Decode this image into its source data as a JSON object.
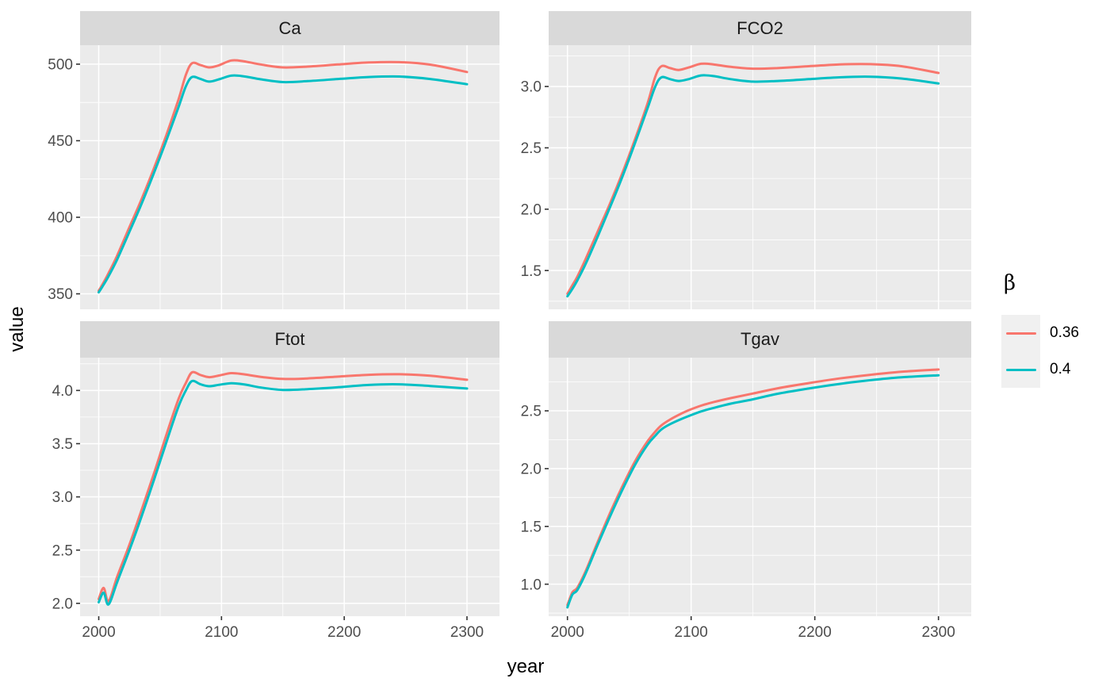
{
  "figure": {
    "x_axis_title": "year",
    "y_axis_title": "value"
  },
  "legend": {
    "title": "β",
    "entries": [
      {
        "label": "0.36",
        "color": "#F8766D"
      },
      {
        "label": "0.4",
        "color": "#00BFC4"
      }
    ]
  },
  "style": {
    "panel_bg": "#EBEBEB",
    "strip_bg": "#D9D9D9",
    "grid_color": "#FFFFFF",
    "tick_mark_color": "#333333",
    "axis_text_color": "#4D4D4D",
    "strip_text_color": "#1A1A1A",
    "series_colors": {
      "0.36": "#F8766D",
      "0.4": "#00BFC4"
    }
  },
  "chart_data": {
    "type": "line",
    "title": "",
    "xlabel": "year",
    "ylabel": "value",
    "legend_title": "β",
    "legend_position": "right",
    "grid": true,
    "x_domain": [
      1984.8,
      2326.5
    ],
    "x_ticks": {
      "values": [
        2000,
        2100,
        2200,
        2300
      ],
      "labels": [
        "2000",
        "2100",
        "2200",
        "2300"
      ],
      "minor": [
        2050,
        2150,
        2250
      ]
    },
    "years": [
      2000,
      2004,
      2008,
      2015,
      2025,
      2035,
      2045,
      2055,
      2065,
      2071,
      2076,
      2083,
      2090,
      2098,
      2108,
      2118,
      2132,
      2150,
      2170,
      2195,
      2220,
      2245,
      2270,
      2300
    ],
    "facets": [
      {
        "title": "Ca",
        "y_domain": [
          339.9,
          512.9
        ],
        "y_ticks": {
          "values": [
            350,
            400,
            450,
            500
          ],
          "labels": [
            "350",
            "400",
            "450",
            "500"
          ],
          "minor": [
            375,
            425,
            475
          ]
        },
        "series": [
          {
            "name": "0.36",
            "values": [
              352,
              357.5,
              363.5,
              375,
              393.5,
              412,
              432,
              453.5,
              477,
              493,
              500.6,
              499.4,
              497.9,
              499.3,
              502.4,
              501.9,
              499.8,
              497.9,
              498.4,
              499.8,
              501.1,
              501.3,
              499.7,
              494.9
            ]
          },
          {
            "name": "0.4",
            "values": [
              351,
              356,
              361.5,
              372.5,
              390.5,
              409,
              429,
              450,
              472,
              485.5,
              491.6,
              490.3,
              488.6,
              490.1,
              492.5,
              492.1,
              490.1,
              488.3,
              488.9,
              490.3,
              491.6,
              491.9,
              490.3,
              486.9
            ]
          }
        ]
      },
      {
        "title": "FCO2",
        "y_domain": [
          1.184,
          3.343
        ],
        "y_ticks": {
          "values": [
            1.5,
            2.0,
            2.5,
            3.0
          ],
          "labels": [
            "1.5",
            "2.0",
            "2.5",
            "3.0"
          ],
          "minor": [
            1.25,
            1.75,
            2.25,
            2.75,
            3.25
          ]
        },
        "series": [
          {
            "name": "0.36",
            "values": [
              1.31,
              1.38,
              1.45,
              1.6,
              1.83,
              2.06,
              2.31,
              2.58,
              2.87,
              3.08,
              3.165,
              3.15,
              3.135,
              3.155,
              3.185,
              3.18,
              3.16,
              3.145,
              3.15,
              3.165,
              3.18,
              3.182,
              3.165,
              3.11
            ]
          },
          {
            "name": "0.4",
            "values": [
              1.29,
              1.35,
              1.42,
              1.56,
              1.79,
              2.03,
              2.28,
              2.55,
              2.83,
              3.0,
              3.075,
              3.06,
              3.045,
              3.06,
              3.09,
              3.085,
              3.06,
              3.04,
              3.045,
              3.06,
              3.075,
              3.08,
              3.065,
              3.025
            ]
          }
        ]
      },
      {
        "title": "Ftot",
        "y_domain": [
          1.879,
          4.308
        ],
        "y_ticks": {
          "values": [
            2.0,
            2.5,
            3.0,
            3.5,
            4.0
          ],
          "labels": [
            "2.0",
            "2.5",
            "3.0",
            "3.5",
            "4.0"
          ],
          "minor": [
            2.25,
            2.75,
            3.25,
            3.75,
            4.25
          ]
        },
        "series": [
          {
            "name": "0.36",
            "values": [
              2.04,
              2.145,
              2.02,
              2.25,
              2.55,
              2.88,
              3.22,
              3.58,
              3.92,
              4.07,
              4.17,
              4.145,
              4.125,
              4.14,
              4.163,
              4.152,
              4.128,
              4.108,
              4.113,
              4.13,
              4.147,
              4.152,
              4.138,
              4.1
            ]
          },
          {
            "name": "0.4",
            "values": [
              2.01,
              2.1,
              1.99,
              2.2,
              2.5,
              2.82,
              3.16,
              3.51,
              3.85,
              4.0,
              4.088,
              4.058,
              4.04,
              4.053,
              4.068,
              4.058,
              4.028,
              4.005,
              4.012,
              4.03,
              4.052,
              4.058,
              4.042,
              4.018
            ]
          }
        ]
      },
      {
        "title": "Tgav",
        "y_domain": [
          0.723,
          2.96
        ],
        "y_ticks": {
          "values": [
            1.0,
            1.5,
            2.0,
            2.5
          ],
          "labels": [
            "1.0",
            "1.5",
            "2.0",
            "2.5"
          ],
          "minor": [
            0.75,
            1.25,
            1.75,
            2.25,
            2.75
          ]
        },
        "series": [
          {
            "name": "0.36",
            "values": [
              0.82,
              0.93,
              0.97,
              1.12,
              1.38,
              1.63,
              1.86,
              2.07,
              2.24,
              2.32,
              2.375,
              2.425,
              2.465,
              2.505,
              2.545,
              2.575,
              2.61,
              2.65,
              2.695,
              2.74,
              2.78,
              2.812,
              2.838,
              2.858
            ]
          },
          {
            "name": "0.4",
            "values": [
              0.8,
              0.91,
              0.95,
              1.1,
              1.355,
              1.6,
              1.83,
              2.04,
              2.21,
              2.285,
              2.34,
              2.385,
              2.42,
              2.455,
              2.495,
              2.525,
              2.562,
              2.6,
              2.648,
              2.693,
              2.733,
              2.765,
              2.79,
              2.808
            ]
          }
        ]
      }
    ]
  }
}
